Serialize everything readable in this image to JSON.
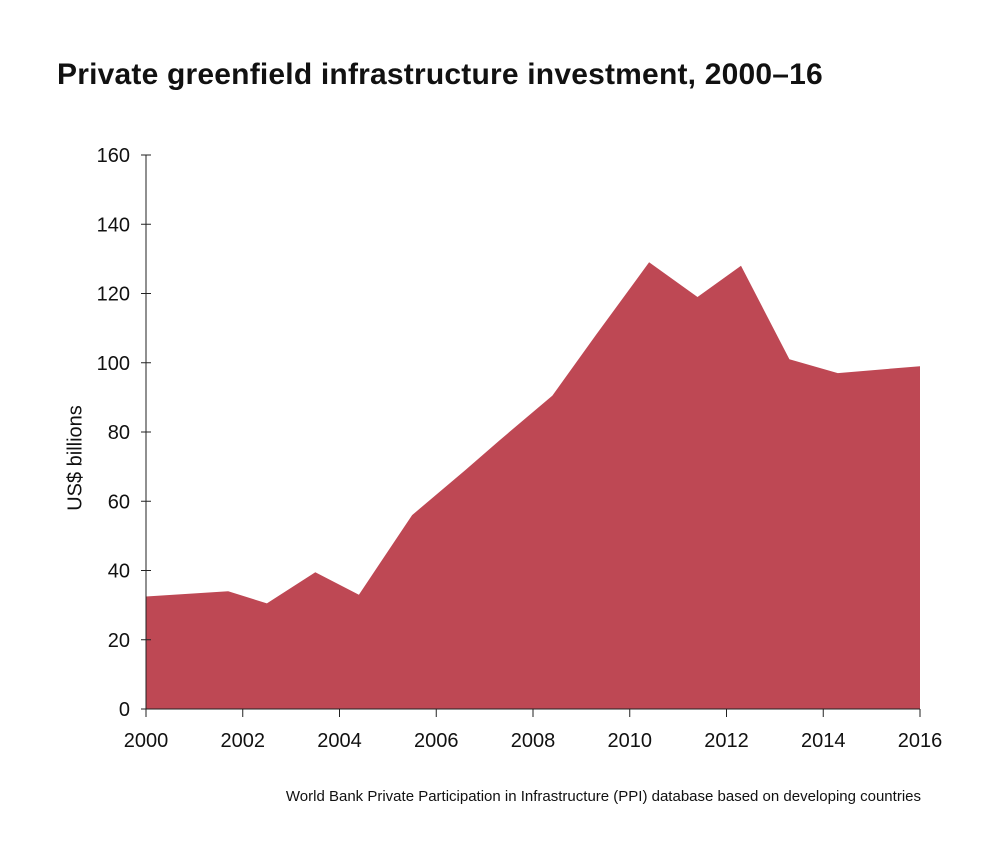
{
  "chart_data": {
    "type": "area",
    "title": "Private greenfield infrastructure investment, 2000–16",
    "ylabel": "US$ billions",
    "xlabel": "",
    "source": "World Bank Private Participation in Infrastructure (PPI) database based on developing countries",
    "color": "#be4854",
    "xlim": [
      2000,
      2016
    ],
    "ylim": [
      0,
      160
    ],
    "yticks": [
      0,
      20,
      40,
      60,
      80,
      100,
      120,
      140,
      160
    ],
    "xticks": [
      2000,
      2002,
      2004,
      2006,
      2008,
      2010,
      2012,
      2014,
      2016
    ],
    "x": [
      2000,
      2001.7,
      2002.5,
      2003.5,
      2004.4,
      2005.5,
      2006.6,
      2007.3,
      2008.4,
      2009.3,
      2010.4,
      2011.4,
      2012.3,
      2013.3,
      2014.3,
      2016
    ],
    "values": [
      32.5,
      34,
      30.5,
      39.5,
      33,
      56,
      69,
      77.5,
      90.5,
      108,
      129,
      119,
      128,
      101,
      97,
      99
    ]
  }
}
